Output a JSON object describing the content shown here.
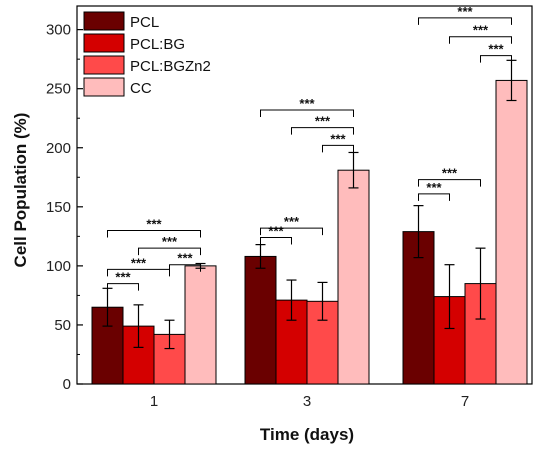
{
  "chart_data": {
    "type": "bar",
    "xlabel": "Time (days)",
    "ylabel": "Cell Population (%)",
    "ylim": [
      0,
      320
    ],
    "yticks": [
      0,
      50,
      100,
      150,
      200,
      250,
      300
    ],
    "categories": [
      "1",
      "3",
      "7"
    ],
    "series": [
      {
        "name": "PCL",
        "color": "#6a0000",
        "values": [
          65,
          108,
          129
        ],
        "errors": [
          16,
          10,
          22
        ]
      },
      {
        "name": "PCL:BG",
        "color": "#d40000",
        "values": [
          49,
          71,
          74
        ],
        "errors": [
          18,
          17,
          27
        ]
      },
      {
        "name": "PCL:BGZn2",
        "color": "#ff4a4a",
        "values": [
          42,
          70,
          85
        ],
        "errors": [
          12,
          16,
          30
        ]
      },
      {
        "name": "CC",
        "color": "#ffbcbc",
        "values": [
          100,
          181,
          257
        ],
        "errors": [
          2,
          15,
          17
        ]
      }
    ],
    "legend_position": "top-left",
    "significance": {
      "label": "***",
      "comparisons": [
        {
          "category": 0,
          "from": 0,
          "to": 1,
          "y": 85
        },
        {
          "category": 0,
          "from": 0,
          "to": 2,
          "y": 97
        },
        {
          "category": 0,
          "from": 0,
          "to": 3,
          "y": 130
        },
        {
          "category": 0,
          "from": 1,
          "to": 3,
          "y": 115
        },
        {
          "category": 0,
          "from": 2,
          "to": 3,
          "y": 101
        },
        {
          "category": 1,
          "from": 0,
          "to": 1,
          "y": 124
        },
        {
          "category": 1,
          "from": 0,
          "to": 2,
          "y": 132
        },
        {
          "category": 1,
          "from": 0,
          "to": 3,
          "y": 232
        },
        {
          "category": 1,
          "from": 1,
          "to": 3,
          "y": 217
        },
        {
          "category": 1,
          "from": 2,
          "to": 3,
          "y": 202
        },
        {
          "category": 2,
          "from": 0,
          "to": 1,
          "y": 161
        },
        {
          "category": 2,
          "from": 0,
          "to": 2,
          "y": 173
        },
        {
          "category": 2,
          "from": 0,
          "to": 3,
          "y": 310
        },
        {
          "category": 2,
          "from": 1,
          "to": 3,
          "y": 294
        },
        {
          "category": 2,
          "from": 2,
          "to": 3,
          "y": 278
        }
      ]
    }
  }
}
